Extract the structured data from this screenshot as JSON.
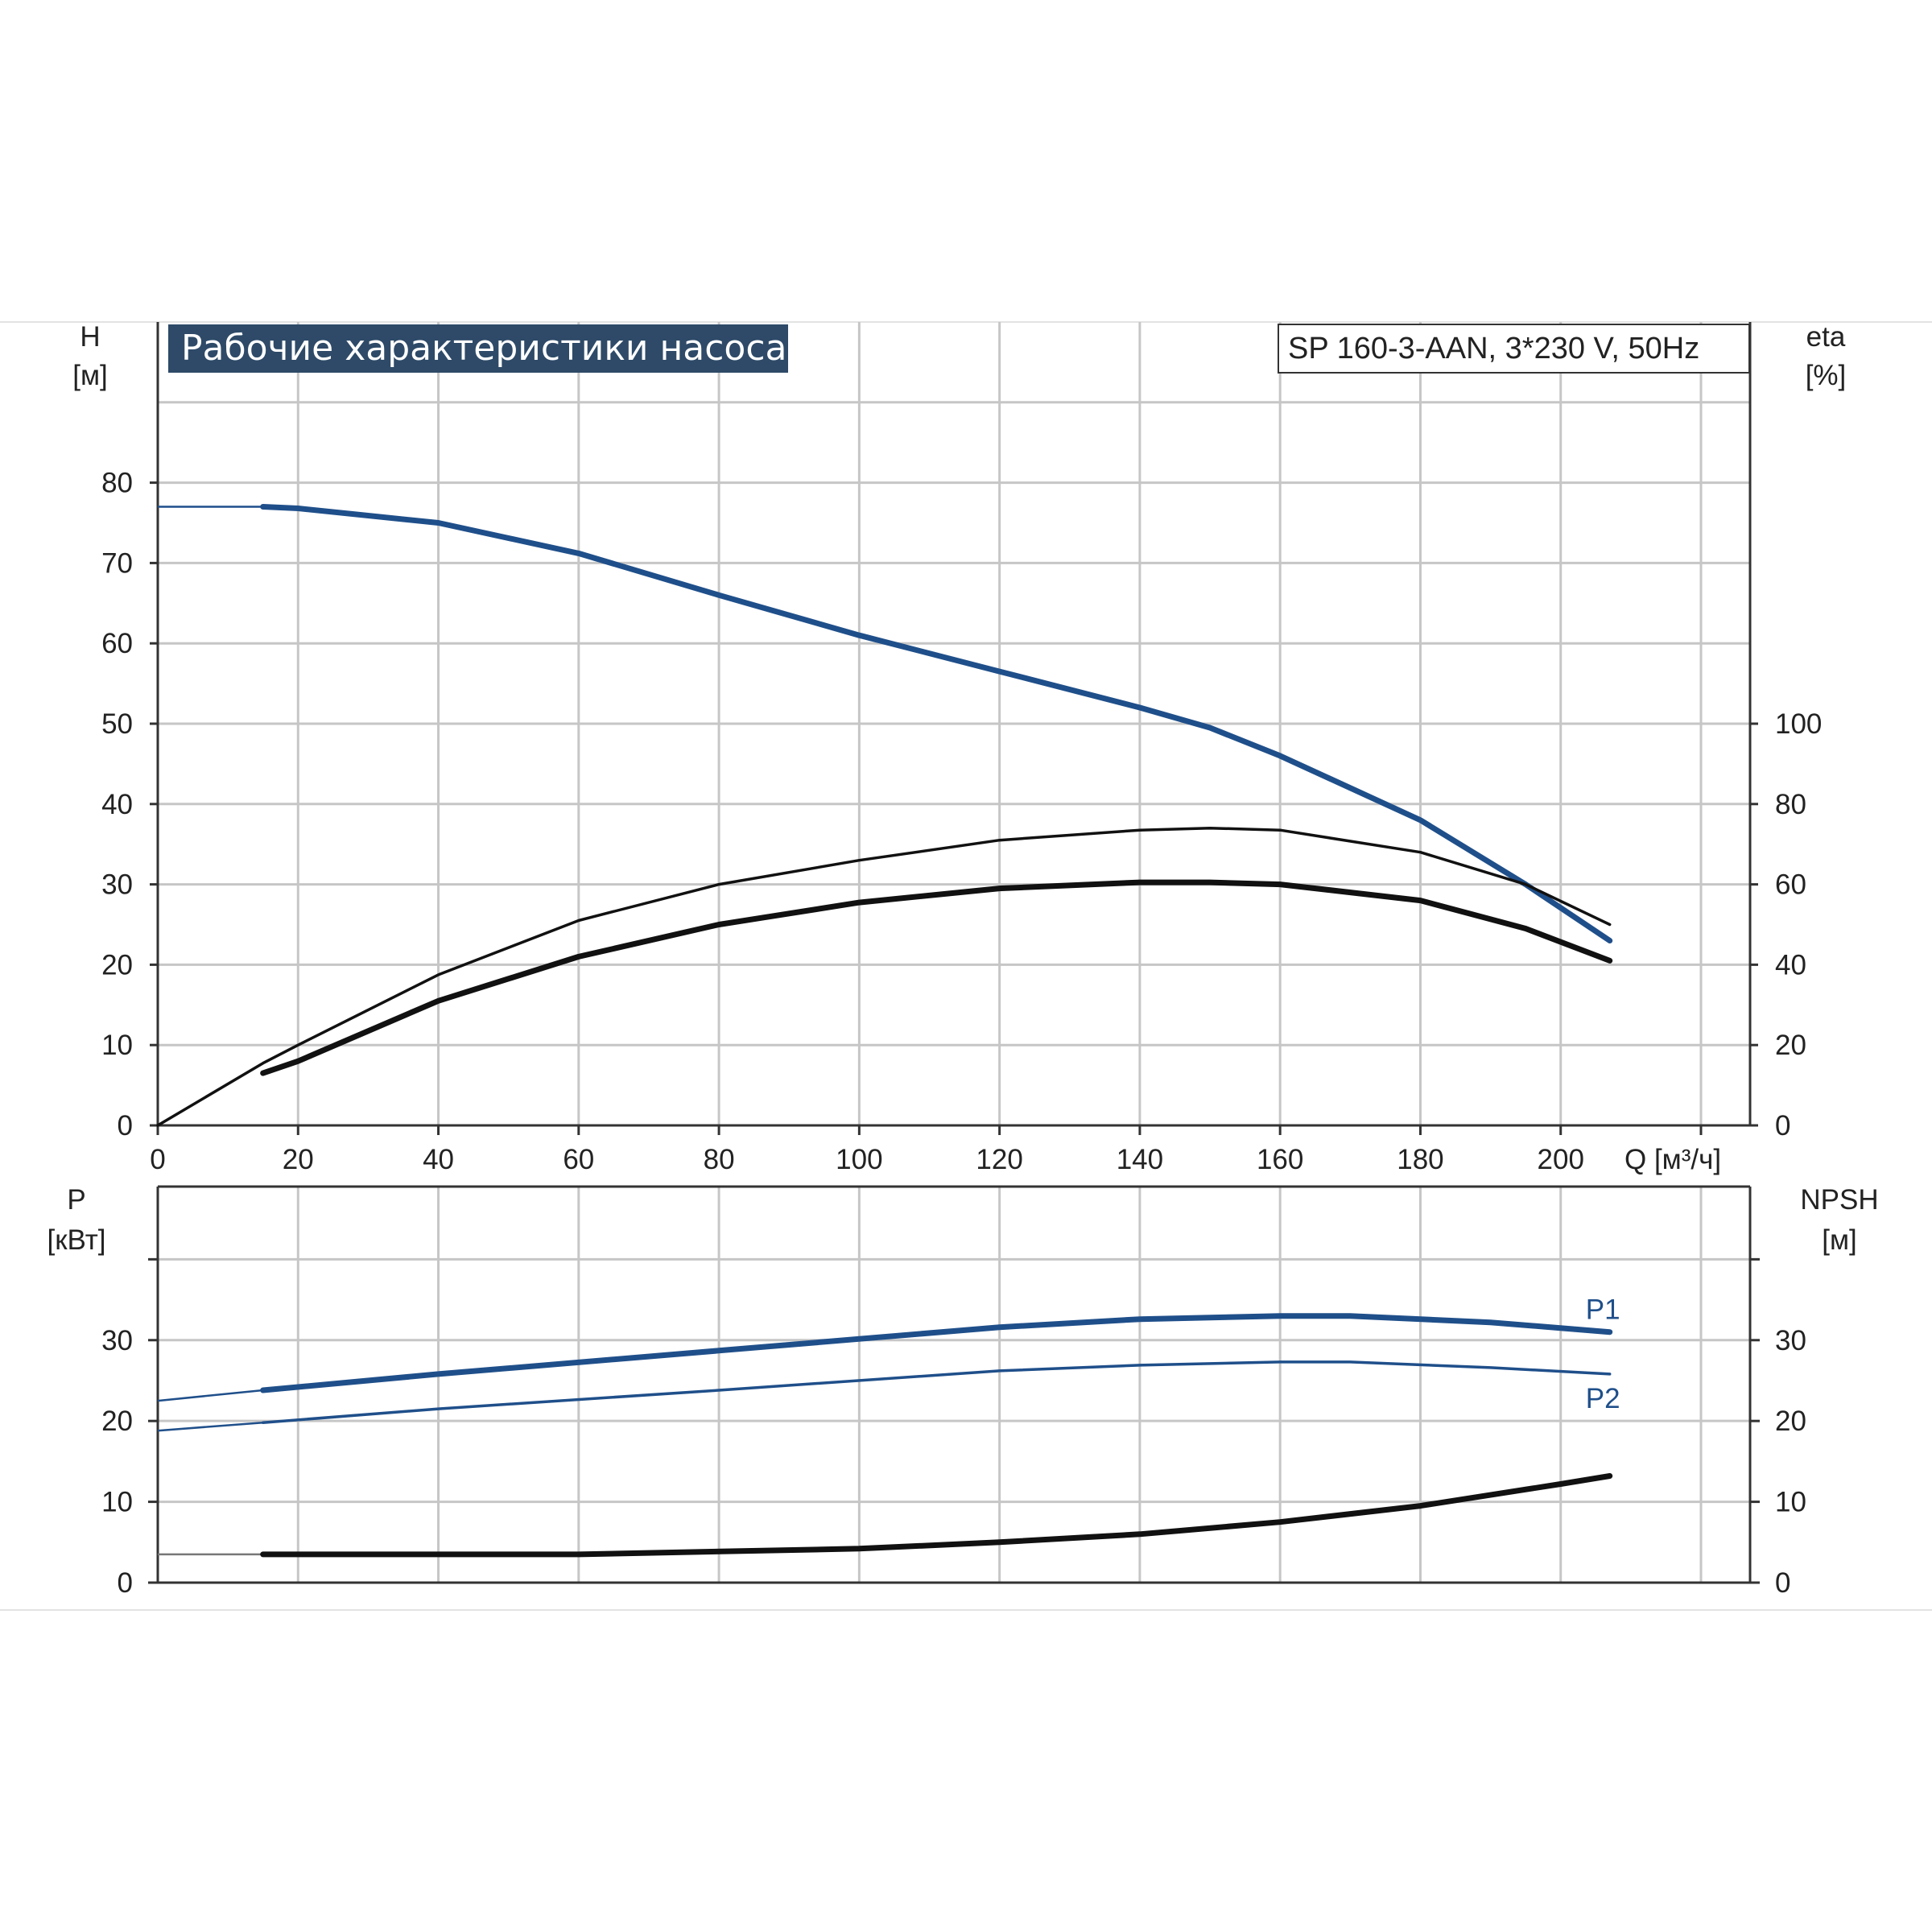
{
  "chart_data": {
    "type": "line",
    "title": "Рабочие характеристики насоса",
    "model": "SP 160-3-AAN, 3*230 V, 50Hz",
    "colors": {
      "blue": "#1f4f8a",
      "black": "#111111",
      "grid": "#c6c6c6",
      "title_bg": "#2e4a68"
    },
    "top_chart": {
      "y_left_label": [
        "H",
        "[м]"
      ],
      "y_right_label": [
        "eta",
        "[%]"
      ],
      "x_label": "Q [м³/ч]",
      "x_ticks": [
        "0",
        "20",
        "40",
        "60",
        "80",
        "100",
        "120",
        "140",
        "160",
        "180",
        "200"
      ],
      "y_left_ticks": [
        "0",
        "10",
        "20",
        "30",
        "40",
        "50",
        "60",
        "70",
        "80"
      ],
      "y_right_ticks": [
        "0",
        "20",
        "40",
        "60",
        "80",
        "100"
      ],
      "xlim": [
        0,
        227
      ],
      "ylim": [
        0,
        100
      ],
      "series": [
        {
          "name": "",
          "axis": "left",
          "color": "blue",
          "width": "thick",
          "dashed_lead": true,
          "x": [
            0,
            15,
            20,
            40,
            60,
            80,
            100,
            120,
            140,
            150,
            160,
            180,
            195,
            207
          ],
          "y": [
            77,
            77,
            76.8,
            75,
            71.2,
            66,
            61,
            56.5,
            52,
            49.5,
            46,
            38,
            30,
            23
          ]
        },
        {
          "name": "",
          "axis": "right",
          "color": "black",
          "width": "thin",
          "x": [
            0,
            15,
            20,
            40,
            60,
            80,
            100,
            120,
            140,
            150,
            160,
            180,
            195,
            207
          ],
          "y": [
            0,
            15.5,
            20,
            37.5,
            51,
            60,
            66,
            71,
            73.5,
            74,
            73.5,
            68,
            60,
            50
          ]
        },
        {
          "name": "",
          "axis": "right",
          "color": "black",
          "width": "thick",
          "x": [
            15,
            20,
            40,
            60,
            80,
            100,
            120,
            140,
            150,
            160,
            180,
            195,
            207
          ],
          "y": [
            13,
            16,
            31,
            42,
            50,
            55.5,
            59,
            60.5,
            60.5,
            60,
            56,
            49,
            41
          ]
        }
      ]
    },
    "bottom_chart": {
      "y_left_label": [
        "P",
        "[кВт]"
      ],
      "y_right_label": [
        "NPSH",
        "[м]"
      ],
      "y_left_ticks": [
        "0",
        "10",
        "20",
        "30"
      ],
      "y_right_ticks": [
        "0",
        "10",
        "20",
        "30"
      ],
      "xlim": [
        0,
        227
      ],
      "ylim": [
        0,
        49
      ],
      "series": [
        {
          "name": "P1",
          "color": "blue",
          "width": "thick",
          "label_pos": "above",
          "x": [
            0,
            15,
            40,
            80,
            120,
            140,
            160,
            170,
            190,
            207
          ],
          "y": [
            22.5,
            23.8,
            25.8,
            28.7,
            31.6,
            32.6,
            33,
            33,
            32.2,
            31
          ]
        },
        {
          "name": "P2",
          "color": "blue",
          "width": "thin",
          "label_pos": "below",
          "x": [
            0,
            15,
            40,
            80,
            120,
            140,
            160,
            170,
            190,
            207
          ],
          "y": [
            18.8,
            19.8,
            21.5,
            23.8,
            26.2,
            26.9,
            27.3,
            27.3,
            26.6,
            25.8
          ]
        },
        {
          "name": "",
          "color": "black",
          "width": "thick",
          "x": [
            0,
            15,
            60,
            100,
            120,
            140,
            160,
            180,
            200,
            207
          ],
          "y": [
            3.5,
            3.5,
            3.5,
            4.2,
            5,
            6,
            7.5,
            9.5,
            12.2,
            13.2
          ]
        }
      ]
    }
  }
}
